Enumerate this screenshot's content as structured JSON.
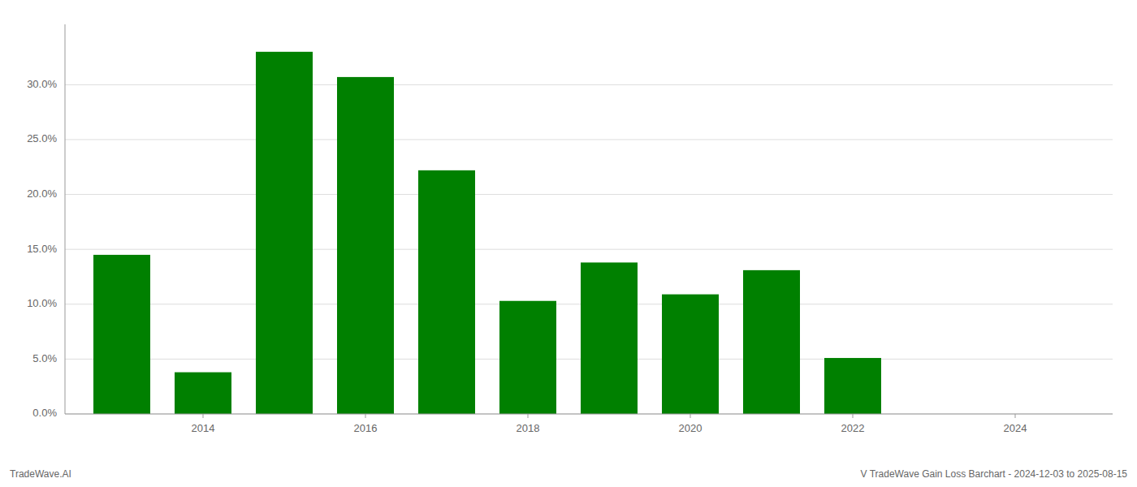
{
  "chart_data": {
    "type": "bar",
    "x": [
      2013,
      2014,
      2015,
      2016,
      2017,
      2018,
      2019,
      2020,
      2021,
      2022,
      2023
    ],
    "values": [
      0.145,
      0.038,
      0.33,
      0.307,
      0.222,
      0.103,
      0.138,
      0.109,
      0.131,
      0.051,
      0.0
    ],
    "color": "#008000",
    "xlim": [
      2012.3,
      2025.2
    ],
    "xticks": [
      2014,
      2016,
      2018,
      2020,
      2022,
      2024
    ],
    "ylim": [
      0,
      0.355
    ],
    "yticks": [
      {
        "value": 0.0,
        "label": "0.0%"
      },
      {
        "value": 0.05,
        "label": "5.0%"
      },
      {
        "value": 0.1,
        "label": "10.0%"
      },
      {
        "value": 0.15,
        "label": "15.0%"
      },
      {
        "value": 0.2,
        "label": "20.0%"
      },
      {
        "value": 0.25,
        "label": "25.0%"
      },
      {
        "value": 0.3,
        "label": "30.0%"
      }
    ],
    "grid": true,
    "annotations": [
      "TradeWave.AI",
      "V TradeWave Gain Loss Barchart - 2024-12-03 to 2025-08-15"
    ]
  }
}
